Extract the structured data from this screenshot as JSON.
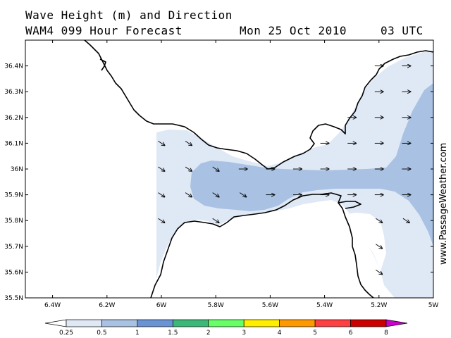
{
  "header": {
    "title_line1": "Wave Height (m) and Direction",
    "model": "WAM4 099 Hour Forecast",
    "date": "Mon 25 Oct 2010",
    "time": "03 UTC"
  },
  "map": {
    "region": "Strait of Gibraltar",
    "lon_range": [
      -6.5,
      -5.0
    ],
    "lat_range": [
      35.5,
      36.5
    ],
    "lat_labels": [
      "36.4N",
      "36.3N",
      "36.2N",
      "36.1N",
      "36N",
      "35.9N",
      "35.8N",
      "35.7N",
      "35.6N",
      "35.5N"
    ],
    "lat_values": [
      36.4,
      36.3,
      36.2,
      36.1,
      36.0,
      35.9,
      35.8,
      35.7,
      35.6,
      35.5
    ],
    "lon_labels": [
      "6.4W",
      "6.2W",
      "6W",
      "5.8W",
      "5.6W",
      "5.4W",
      "5.2W",
      "5W"
    ],
    "lon_values": [
      -6.4,
      -6.2,
      -6.0,
      -5.8,
      -5.6,
      -5.4,
      -5.2,
      -5.0
    ],
    "wave_direction": "arrows pointing east / south-east",
    "colors": {
      "band_025_05": "#dfe8f5",
      "band_05_1": "#a9c1e2",
      "coast": "#000000"
    }
  },
  "colorbar": {
    "labels": [
      "0.25",
      "0.5",
      "1",
      "1.5",
      "2",
      "3",
      "4",
      "5",
      "6",
      "8"
    ],
    "colors": [
      "#ffffff",
      "#dfe8f5",
      "#a9c1e2",
      "#6a93d4",
      "#3cb878",
      "#66ff66",
      "#ffee00",
      "#ff9900",
      "#ff4040",
      "#cc0000",
      "#cc00cc"
    ]
  },
  "credit": "www.PassageWeather.com"
}
